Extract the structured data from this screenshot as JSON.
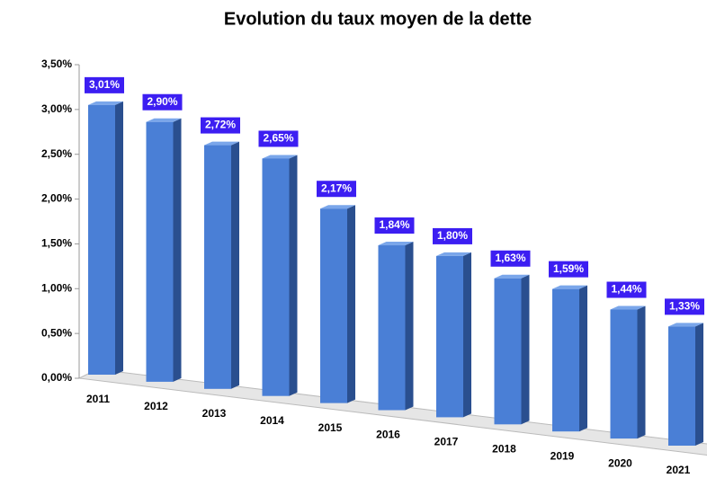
{
  "chart_data": {
    "type": "bar3d",
    "title": "Evolution du taux moyen de la dette",
    "categories": [
      "2011",
      "2012",
      "2013",
      "2014",
      "2015",
      "2016",
      "2017",
      "2018",
      "2019",
      "2020",
      "2021"
    ],
    "values": [
      3.01,
      2.9,
      2.72,
      2.65,
      2.17,
      1.84,
      1.8,
      1.63,
      1.59,
      1.44,
      1.33
    ],
    "value_labels": [
      "3,01%",
      "2,90%",
      "2,72%",
      "2,65%",
      "2,17%",
      "1,84%",
      "1,80%",
      "1,63%",
      "1,59%",
      "1,44%",
      "1,33%"
    ],
    "color": "#4a7fd6",
    "label_color": "#3c1ef2",
    "ylim": [
      0,
      3.5
    ],
    "yticks": [
      {
        "value": 0,
        "label": "0,00%"
      },
      {
        "value": 0.5,
        "label": "0,50%"
      },
      {
        "value": 1,
        "label": "1,00%"
      },
      {
        "value": 1.5,
        "label": "1,50%"
      },
      {
        "value": 2,
        "label": "2,00%"
      },
      {
        "value": 2.5,
        "label": "2,50%"
      },
      {
        "value": 3,
        "label": "3,00%"
      },
      {
        "value": 3.5,
        "label": "3,50%"
      }
    ],
    "grid": false
  }
}
